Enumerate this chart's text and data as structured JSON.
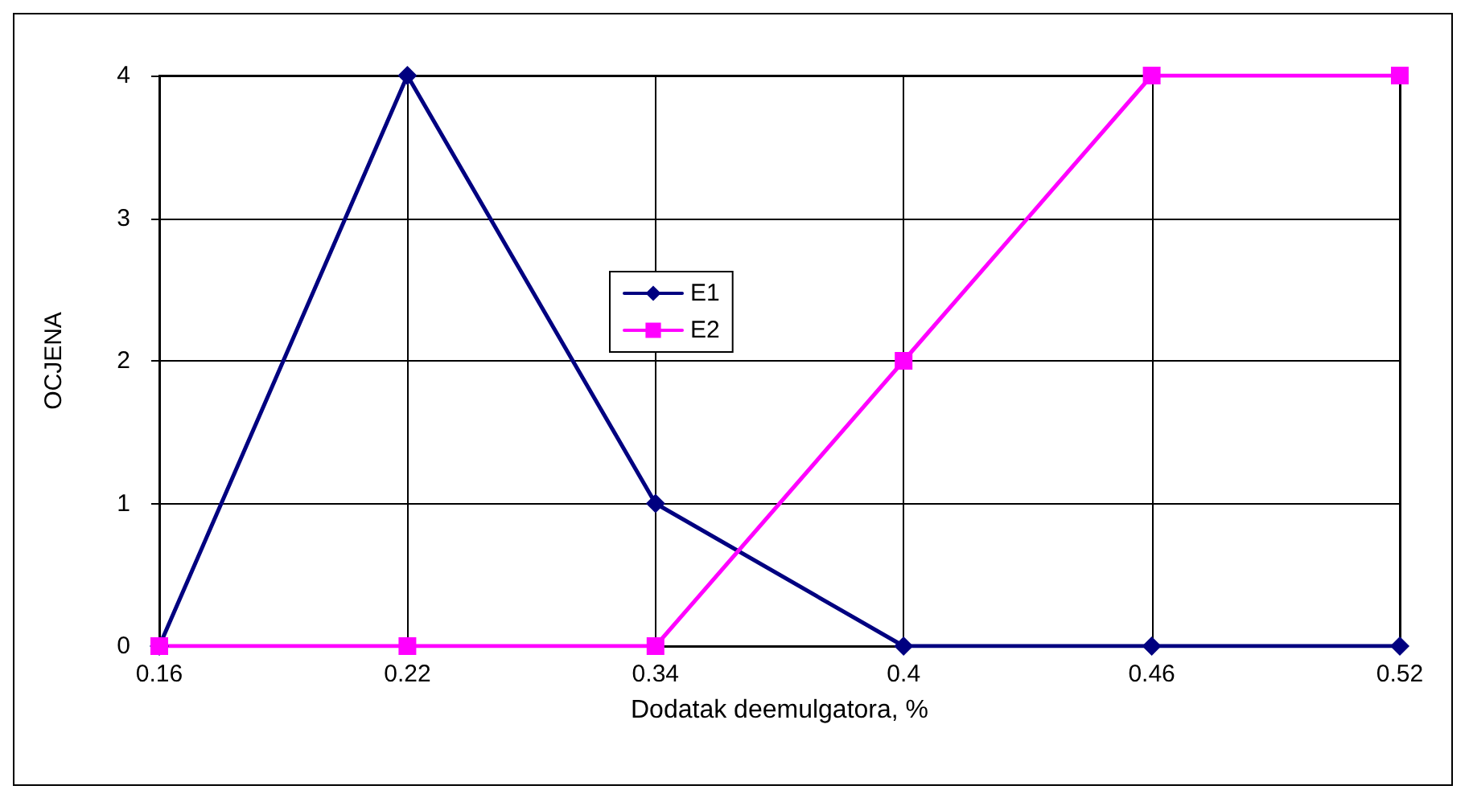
{
  "chart_data": {
    "type": "line",
    "xlabel": "Dodatak deemulgatora, %",
    "ylabel": "OCJENA",
    "categories": [
      "0.16",
      "0.22",
      "0.34",
      "0.4",
      "0.46",
      "0.52"
    ],
    "series": [
      {
        "name": "E1",
        "color": "#000080",
        "marker": "diamond",
        "values": [
          0,
          4,
          1,
          0,
          0,
          0
        ]
      },
      {
        "name": "E2",
        "color": "#ff00ff",
        "marker": "square",
        "values": [
          0,
          0,
          0,
          2,
          4,
          4
        ]
      }
    ],
    "ylim": [
      0,
      4
    ],
    "yticks": [
      0,
      1,
      2,
      3,
      4
    ],
    "grid": true,
    "legend": "center",
    "line_style": "solid"
  }
}
